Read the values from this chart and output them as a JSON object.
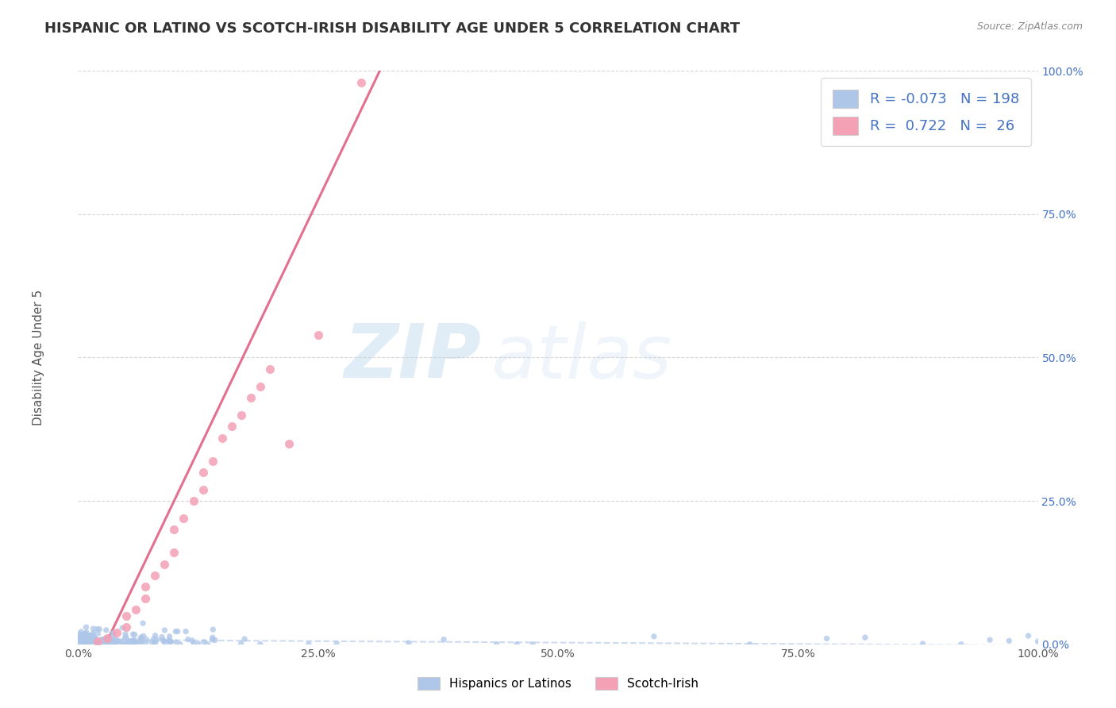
{
  "title": "HISPANIC OR LATINO VS SCOTCH-IRISH DISABILITY AGE UNDER 5 CORRELATION CHART",
  "source_text": "Source: ZipAtlas.com",
  "ylabel": "Disability Age Under 5",
  "legend_labels": [
    "Hispanics or Latinos",
    "Scotch-Irish"
  ],
  "r_hispanic": -0.073,
  "n_hispanic": 198,
  "r_scotch": 0.722,
  "n_scotch": 26,
  "blue_color": "#aec6e8",
  "pink_color": "#f4a0b5",
  "blue_line_color": "#c8d8ee",
  "pink_line_color": "#e06080",
  "title_fontsize": 13,
  "axis_label_fontsize": 11,
  "tick_fontsize": 10,
  "watermark_zip": "ZIP",
  "watermark_atlas": "atlas",
  "background_color": "#ffffff",
  "grid_color": "#cccccc",
  "scotch_points_x": [
    0.02,
    0.03,
    0.04,
    0.05,
    0.05,
    0.06,
    0.07,
    0.07,
    0.08,
    0.09,
    0.1,
    0.1,
    0.11,
    0.12,
    0.13,
    0.13,
    0.14,
    0.15,
    0.16,
    0.17,
    0.18,
    0.19,
    0.2,
    0.22,
    0.25,
    0.295
  ],
  "scotch_points_y": [
    0.005,
    0.01,
    0.02,
    0.03,
    0.05,
    0.06,
    0.08,
    0.1,
    0.12,
    0.14,
    0.16,
    0.2,
    0.22,
    0.25,
    0.27,
    0.3,
    0.32,
    0.36,
    0.38,
    0.4,
    0.43,
    0.45,
    0.48,
    0.35,
    0.54,
    0.98
  ],
  "pink_reg_slope": 3.5,
  "pink_reg_intercept": -0.1,
  "blue_reg_slope": -0.01,
  "blue_reg_intercept": 0.008
}
